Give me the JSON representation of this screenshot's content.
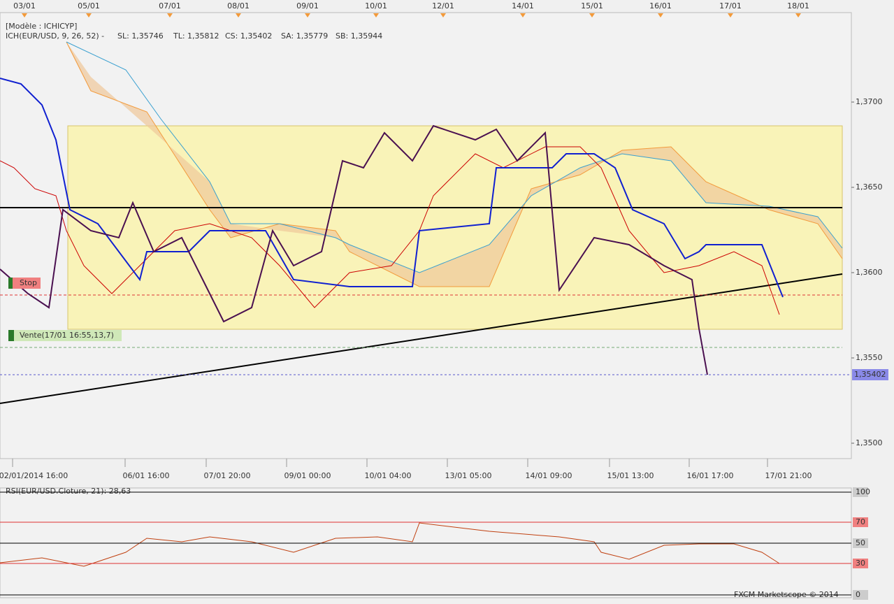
{
  "top_dates": [
    "03/01",
    "05/01",
    "07/01",
    "08/01",
    "09/01",
    "10/01",
    "12/01",
    "14/01",
    "15/01",
    "16/01",
    "17/01",
    "18/01"
  ],
  "header": {
    "model": "[Modèle : ICHICYP]",
    "indicator": "ICH(EUR/USD, 9, 26, 52) -",
    "sl": "SL: 1,35746",
    "tl": "TL: 1,35812",
    "cs": "CS: 1,35402",
    "sa": "SA: 1,35779",
    "sb": "SB: 1,35944"
  },
  "price_axis": [
    "1,3700",
    "1,3650",
    "1,3600",
    "1,3550",
    "1,3500"
  ],
  "current_price": "1,35402",
  "time_axis": [
    "02/01/2014 16:00",
    "06/01 16:00",
    "07/01 20:00",
    "09/01 00:00",
    "10/01 04:00",
    "13/01 05:00",
    "14/01 09:00",
    "15/01 13:00",
    "16/01 17:00",
    "17/01 21:00"
  ],
  "orders": {
    "stop": "Stop",
    "sell": "Vente(17/01 16:55,13,7)"
  },
  "rsi": {
    "label": "RSI(EUR/USD.Cloture, 21): 28,63",
    "levels": [
      "100",
      "70",
      "50",
      "30",
      "0"
    ]
  },
  "footer": "FXCM Marketscope © 2014"
}
